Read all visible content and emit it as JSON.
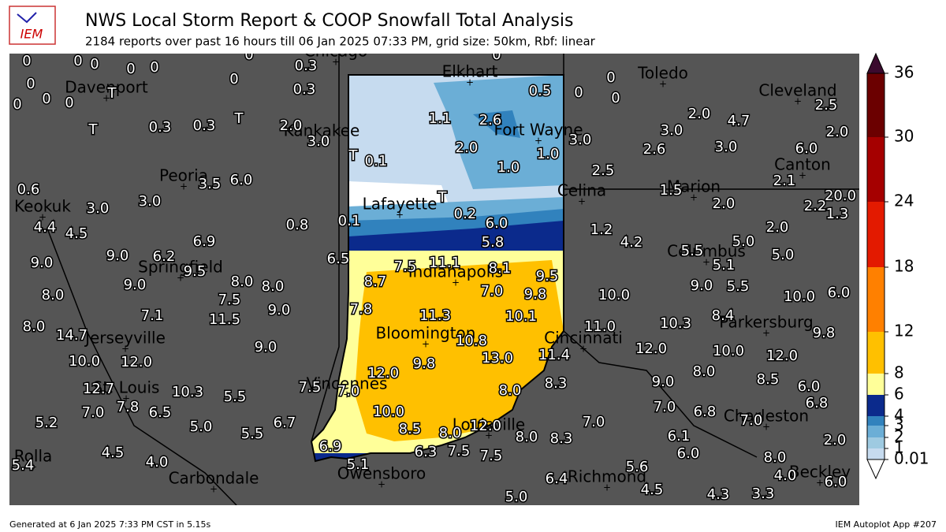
{
  "header": {
    "logo": "IEM",
    "title": "NWS Local Storm Report & COOP Snowfall Total Analysis",
    "subtitle": "2184 reports over past 16 hours till 06 Jan 2025 07:33 PM, grid size: 50km, Rbf: linear"
  },
  "colorbar": {
    "ticks": [
      "0.01",
      "1",
      "2",
      "3",
      "4",
      "6",
      "8",
      "12",
      "18",
      "24",
      "30",
      "36"
    ]
  },
  "cities": [
    "Chicago",
    "Elkhart",
    "Toledo",
    "Cleveland",
    "Davenport",
    "Kankakee",
    "Fort Wayne",
    "Peoria",
    "Canton",
    "Marion",
    "Celina",
    "Keokuk",
    "Lafayette",
    "Columbus",
    "Springfield",
    "Indianapolis",
    "Parkersburg",
    "Jerseyville",
    "Bloomington",
    "Cincinnati",
    "Vincennes",
    "St. Louis",
    "Louisville",
    "Charleston",
    "Rolla",
    "Owensboro",
    "Carbondale",
    "Richmond",
    "Beckley"
  ],
  "reports": [
    "0",
    "0",
    "0",
    "0",
    "0",
    "0",
    "0.3",
    "0",
    "0",
    "0.5",
    "0",
    "0",
    "0",
    "0",
    "0",
    "0",
    "0",
    "0.3",
    "T",
    "1.1",
    "2.6",
    "2.0",
    "4.7",
    "2.5",
    "T",
    "0.3",
    "0.3",
    "T",
    "2.0",
    "3.0",
    "3.0",
    "2.0",
    "2.0",
    "1.0",
    "3.0",
    "2.6",
    "3.0",
    "6.0",
    "T",
    "0.1",
    "1.0",
    "2.5",
    "2.1",
    "20.0",
    "0.6",
    "3.5",
    "6.0",
    "3.0",
    "3.0",
    "T",
    "1.5",
    "2.0",
    "2.2",
    "1.3",
    "0.2",
    "6.0",
    "0.1",
    "0.8",
    "4.4",
    "4.5",
    "1.2",
    "4.2",
    "2.0",
    "5.0",
    "6.9",
    "5.8",
    "9.0",
    "9.0",
    "6.2",
    "9.5",
    "6.5",
    "7.5",
    "11.1",
    "8.1",
    "5.5",
    "5.1",
    "5.0",
    "8.7",
    "9.5",
    "8.0",
    "8.0",
    "9.0",
    "7.0",
    "9.8",
    "9.0",
    "5.5",
    "10.0",
    "6.0",
    "8.0",
    "7.5",
    "10.0",
    "7.8",
    "9.0",
    "7.1",
    "11.5",
    "11.3",
    "10.1",
    "8.4",
    "10.3",
    "8.0",
    "11.0",
    "14.7",
    "9.8",
    "10.8",
    "9.0",
    "12.0",
    "10.0",
    "12.0",
    "11.4",
    "13.0",
    "10.0",
    "12.0",
    "9.8",
    "12.0",
    "8.0",
    "9.0",
    "8.5",
    "8.3",
    "12.7",
    "7.5",
    "7.0",
    "10.3",
    "5.5",
    "8.0",
    "6.0",
    "7.8",
    "6.5",
    "7.0",
    "10.0",
    "7.0",
    "7.0",
    "6.8",
    "6.8",
    "7.0",
    "5.2",
    "5.0",
    "6.7",
    "5.5",
    "8.5",
    "12.0",
    "8.0",
    "8.0",
    "8.3",
    "6.1",
    "2.0",
    "6.9",
    "6.3",
    "7.5",
    "7.5",
    "6.0",
    "8.0",
    "4.5",
    "4.0",
    "5.4",
    "5.1",
    "5.6",
    "4.0",
    "6.4",
    "4.5",
    "6.0",
    "5.0",
    "4.3",
    "3.3"
  ],
  "footer": {
    "left": "Generated at 6 Jan 2025 7:33 PM CST in 5.15s",
    "right": "IEM Autoplot App #207"
  }
}
